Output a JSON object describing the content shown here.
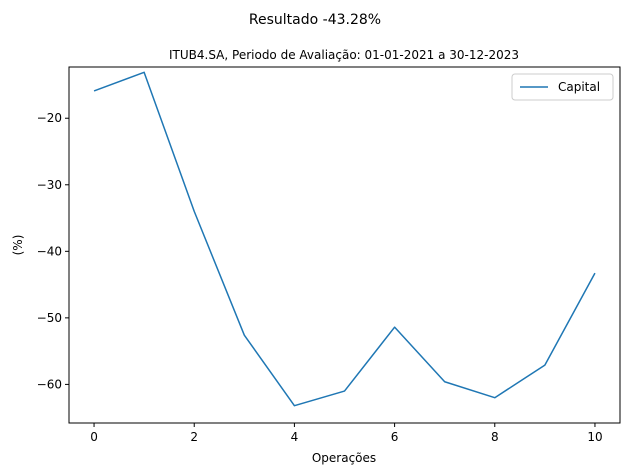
{
  "chart_data": {
    "type": "line",
    "suptitle": "Resultado -43.28%",
    "title": "ITUB4.SA, Periodo de Avaliação: 01-01-2021 a 30-12-2023",
    "xlabel": "Operações",
    "ylabel": "(%)",
    "xlim": [
      -0.5,
      10.5
    ],
    "ylim": [
      -65.8,
      -12.3
    ],
    "xticks": [
      0,
      2,
      4,
      6,
      8,
      10
    ],
    "yticks": [
      -60,
      -50,
      -40,
      -30,
      -20
    ],
    "ytick_labels": [
      "−60",
      "−50",
      "−40",
      "−30",
      "−20"
    ],
    "grid": false,
    "legend_position": "top-right",
    "series": [
      {
        "name": "Capital",
        "color": "#1f77b4",
        "x": [
          0,
          1,
          2,
          3,
          4,
          5,
          6,
          7,
          8,
          9,
          10
        ],
        "y": [
          -15.9,
          -13.1,
          -34.0,
          -52.6,
          -63.2,
          -61.0,
          -51.4,
          -59.6,
          -62.0,
          -57.1,
          -43.28
        ]
      }
    ]
  }
}
